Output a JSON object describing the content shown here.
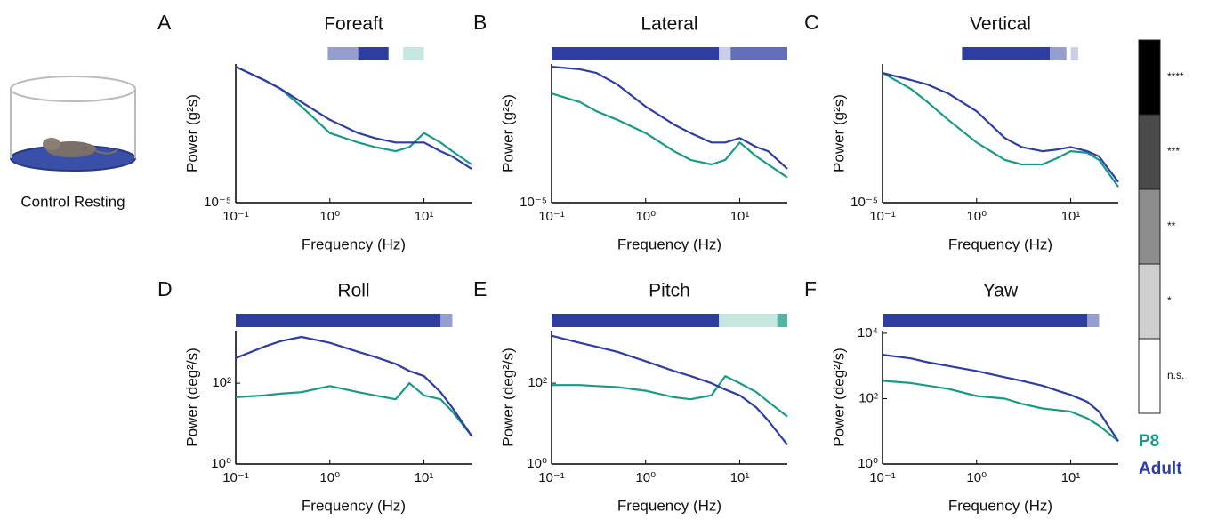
{
  "illustration": {
    "caption": "Control Resting"
  },
  "colorbar": {
    "levels": [
      "****",
      "***",
      "**",
      "*",
      "n.s."
    ],
    "colors": [
      "#000000",
      "#4a4a4a",
      "#8c8c8c",
      "#cfcfcf",
      "#ffffff"
    ]
  },
  "chart_data": [
    {
      "type": "line",
      "panel": "A",
      "title": "Foreaft",
      "xlabel": "Frequency (Hz)",
      "ylabel": "Power (g²s)",
      "xscale": "log",
      "yscale": "log",
      "x": [
        0.1,
        0.2,
        0.3,
        0.5,
        1,
        2,
        3,
        5,
        7,
        10,
        15,
        20,
        32
      ],
      "xlim": [
        0.1,
        32
      ],
      "ylim": [
        1e-05,
        0.01
      ],
      "xticks": [
        {
          "value": 0.1,
          "label": "10⁻¹"
        },
        {
          "value": 1,
          "label": "10⁰"
        },
        {
          "value": 10,
          "label": "10¹"
        }
      ],
      "yticks": [
        {
          "value": 1e-05,
          "label": "10⁻⁵"
        }
      ],
      "series": [
        {
          "name": "P8",
          "color": "#1a9a85",
          "values": [
            0.0087,
            0.0045,
            0.0029,
            0.0012,
            0.00032,
            0.0002,
            0.00016,
            0.00013,
            0.00016,
            0.00032,
            0.0002,
            0.00013,
            6.7e-05
          ]
        },
        {
          "name": "Adult",
          "color": "#2e3da0",
          "values": [
            0.0087,
            0.0045,
            0.0029,
            0.0015,
            0.00062,
            0.00032,
            0.00025,
            0.0002,
            0.0002,
            0.0002,
            0.00013,
            0.0001,
            5.4e-05
          ]
        }
      ],
      "significance": [
        {
          "from": 0.95,
          "to": 2.0,
          "level": 2,
          "color": "#2e3da0"
        },
        {
          "from": 2.0,
          "to": 4.2,
          "level": 4,
          "color": "#2e3da0"
        },
        {
          "from": 6,
          "to": 10,
          "level": 1,
          "color": "#1a9a85"
        }
      ]
    },
    {
      "type": "line",
      "panel": "B",
      "title": "Lateral",
      "xlabel": "Frequency (Hz)",
      "ylabel": "Power (g²s)",
      "xscale": "log",
      "yscale": "log",
      "x": [
        0.1,
        0.2,
        0.3,
        0.5,
        1,
        2,
        3,
        5,
        7,
        10,
        15,
        20,
        32
      ],
      "xlim": [
        0.1,
        32
      ],
      "ylim": [
        1e-05,
        0.01
      ],
      "xticks": [
        {
          "value": 0.1,
          "label": "10⁻¹"
        },
        {
          "value": 1,
          "label": "10⁰"
        },
        {
          "value": 10,
          "label": "10¹"
        }
      ],
      "yticks": [
        {
          "value": 1e-05,
          "label": "10⁻⁵"
        }
      ],
      "series": [
        {
          "name": "P8",
          "color": "#1a9a85",
          "values": [
            0.0023,
            0.0015,
            0.00095,
            0.00062,
            0.00032,
            0.00013,
            8.4e-05,
            6.7e-05,
            8.4e-05,
            0.0002,
            0.0001,
            6.7e-05,
            3.5e-05
          ]
        },
        {
          "name": "Adult",
          "color": "#2e3da0",
          "values": [
            0.0087,
            0.0077,
            0.0064,
            0.0036,
            0.0012,
            0.00049,
            0.00032,
            0.0002,
            0.0002,
            0.00025,
            0.00016,
            0.00013,
            5.4e-05
          ]
        }
      ],
      "significance": [
        {
          "from": 0.1,
          "to": 6,
          "level": 4,
          "color": "#2e3da0"
        },
        {
          "from": 6,
          "to": 8,
          "level": 1,
          "color": "#2e3da0"
        },
        {
          "from": 8,
          "to": 32,
          "level": 3,
          "color": "#2e3da0"
        }
      ]
    },
    {
      "type": "line",
      "panel": "C",
      "title": "Vertical",
      "xlabel": "Frequency (Hz)",
      "ylabel": "Power (g²s)",
      "xscale": "log",
      "yscale": "log",
      "x": [
        0.1,
        0.2,
        0.3,
        0.5,
        1,
        2,
        3,
        5,
        7,
        10,
        15,
        20,
        32
      ],
      "xlim": [
        0.1,
        32
      ],
      "ylim": [
        1e-05,
        0.01
      ],
      "xticks": [
        {
          "value": 0.1,
          "label": "10⁻¹"
        },
        {
          "value": 1,
          "label": "10⁰"
        },
        {
          "value": 10,
          "label": "10¹"
        }
      ],
      "yticks": [
        {
          "value": 1e-05,
          "label": "10⁻⁵"
        }
      ],
      "series": [
        {
          "name": "P8",
          "color": "#1a9a85",
          "values": [
            0.0064,
            0.0029,
            0.0015,
            0.00062,
            0.0002,
            8.4e-05,
            6.7e-05,
            6.7e-05,
            9e-05,
            0.00013,
            0.00012,
            8.4e-05,
            2.2e-05
          ]
        },
        {
          "name": "Adult",
          "color": "#2e3da0",
          "values": [
            0.0064,
            0.0045,
            0.0036,
            0.0023,
            0.00095,
            0.00025,
            0.00016,
            0.00013,
            0.00014,
            0.00016,
            0.00013,
            0.0001,
            2.8e-05
          ]
        }
      ],
      "significance": [
        {
          "from": 0.7,
          "to": 6,
          "level": 4,
          "color": "#2e3da0"
        },
        {
          "from": 6,
          "to": 9,
          "level": 2,
          "color": "#2e3da0"
        },
        {
          "from": 10,
          "to": 12,
          "level": 1,
          "color": "#2e3da0"
        }
      ]
    },
    {
      "type": "line",
      "panel": "D",
      "title": "Roll",
      "xlabel": "Frequency (Hz)",
      "ylabel": "Power (deg²/s)",
      "xscale": "log",
      "yscale": "log",
      "x": [
        0.1,
        0.2,
        0.3,
        0.5,
        1,
        2,
        3,
        5,
        7,
        10,
        15,
        20,
        32
      ],
      "xlim": [
        0.1,
        32
      ],
      "ylim": [
        1,
        2000
      ],
      "xticks": [
        {
          "value": 0.1,
          "label": "10⁻¹"
        },
        {
          "value": 1,
          "label": "10⁰"
        },
        {
          "value": 10,
          "label": "10¹"
        }
      ],
      "yticks": [
        {
          "value": 1,
          "label": "10⁰"
        },
        {
          "value": 100,
          "label": "10²"
        }
      ],
      "series": [
        {
          "name": "P8",
          "color": "#1a9a85",
          "values": [
            45,
            50,
            55,
            60,
            85,
            60,
            50,
            40,
            100,
            50,
            40,
            20,
            5
          ]
        },
        {
          "name": "Adult",
          "color": "#2e3da0",
          "values": [
            420,
            800,
            1100,
            1400,
            1000,
            600,
            450,
            300,
            200,
            150,
            60,
            25,
            5
          ]
        }
      ],
      "significance": [
        {
          "from": 0.1,
          "to": 15,
          "level": 4,
          "color": "#2e3da0"
        },
        {
          "from": 15,
          "to": 20,
          "level": 2,
          "color": "#2e3da0"
        }
      ]
    },
    {
      "type": "line",
      "panel": "E",
      "title": "Pitch",
      "xlabel": "Frequency (Hz)",
      "ylabel": "Power (deg²/s)",
      "xscale": "log",
      "yscale": "log",
      "x": [
        0.1,
        0.2,
        0.3,
        0.5,
        1,
        2,
        3,
        5,
        7,
        10,
        15,
        20,
        32
      ],
      "xlim": [
        0.1,
        32
      ],
      "ylim": [
        1,
        2000
      ],
      "xticks": [
        {
          "value": 0.1,
          "label": "10⁻¹"
        },
        {
          "value": 1,
          "label": "10⁰"
        },
        {
          "value": 10,
          "label": "10¹"
        }
      ],
      "yticks": [
        {
          "value": 1,
          "label": "10⁰"
        },
        {
          "value": 100,
          "label": "10²"
        }
      ],
      "series": [
        {
          "name": "P8",
          "color": "#1a9a85",
          "values": [
            90,
            90,
            85,
            80,
            65,
            45,
            40,
            50,
            150,
            100,
            60,
            35,
            15
          ]
        },
        {
          "name": "Adult",
          "color": "#2e3da0",
          "values": [
            1500,
            1000,
            800,
            600,
            350,
            200,
            150,
            100,
            70,
            50,
            25,
            12,
            3
          ]
        }
      ],
      "significance": [
        {
          "from": 0.1,
          "to": 6,
          "level": 4,
          "color": "#2e3da0"
        },
        {
          "from": 6,
          "to": 25,
          "level": 1,
          "color": "#1a9a85"
        },
        {
          "from": 25,
          "to": 32,
          "level": 3,
          "color": "#1a9a85"
        }
      ]
    },
    {
      "type": "line",
      "panel": "F",
      "title": "Yaw",
      "xlabel": "Frequency (Hz)",
      "ylabel": "Power (deg²/s)",
      "xscale": "log",
      "yscale": "log",
      "x": [
        0.1,
        0.2,
        0.3,
        0.5,
        1,
        2,
        3,
        5,
        7,
        10,
        15,
        20,
        32
      ],
      "xlim": [
        0.1,
        32
      ],
      "ylim": [
        1,
        12000
      ],
      "xticks": [
        {
          "value": 0.1,
          "label": "10⁻¹"
        },
        {
          "value": 1,
          "label": "10⁰"
        },
        {
          "value": 10,
          "label": "10¹"
        }
      ],
      "yticks": [
        {
          "value": 1,
          "label": "10⁰"
        },
        {
          "value": 100,
          "label": "10²"
        },
        {
          "value": 10000,
          "label": "10⁴"
        }
      ],
      "series": [
        {
          "name": "P8",
          "color": "#1a9a85",
          "values": [
            350,
            300,
            250,
            200,
            120,
            100,
            70,
            50,
            45,
            40,
            25,
            15,
            5
          ]
        },
        {
          "name": "Adult",
          "color": "#2e3da0",
          "values": [
            2200,
            1700,
            1300,
            1000,
            700,
            450,
            350,
            250,
            180,
            130,
            80,
            40,
            5
          ]
        }
      ],
      "significance": [
        {
          "from": 0.1,
          "to": 15,
          "level": 4,
          "color": "#2e3da0"
        },
        {
          "from": 15,
          "to": 20,
          "level": 2,
          "color": "#2e3da0"
        }
      ]
    }
  ]
}
